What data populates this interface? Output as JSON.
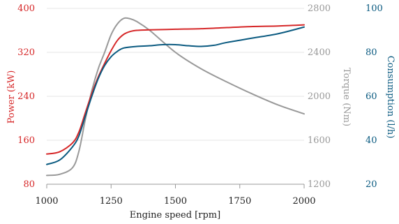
{
  "chart_data": {
    "type": "line",
    "xlabel": "Engine speed [rpm]",
    "xlim": [
      1000,
      2000
    ],
    "xticks": [
      "1000",
      "1250",
      "1500",
      "1750",
      "2000"
    ],
    "axes": {
      "power": {
        "label": "Power (kW)",
        "range": [
          80,
          400
        ],
        "ticks": [
          "80",
          "160",
          "240",
          "320",
          "400"
        ],
        "color": "#d62728"
      },
      "torque": {
        "label": "Torque (Nm)",
        "range": [
          1200,
          2800
        ],
        "ticks": [
          "1200",
          "1600",
          "2000",
          "2400",
          "2800"
        ],
        "color": "#999999"
      },
      "consumption": {
        "label": "Consumption (l/h)",
        "range": [
          20,
          100
        ],
        "ticks": [
          "20",
          "40",
          "60",
          "80",
          "100"
        ],
        "color": "#0a5a80"
      }
    },
    "grid": true,
    "series": [
      {
        "axis": "power",
        "color": "#d62728",
        "points": [
          [
            1000,
            135
          ],
          [
            1050,
            139
          ],
          [
            1100,
            155
          ],
          [
            1125,
            175
          ],
          [
            1150,
            210
          ],
          [
            1175,
            245
          ],
          [
            1200,
            275
          ],
          [
            1225,
            300
          ],
          [
            1250,
            323
          ],
          [
            1275,
            342
          ],
          [
            1300,
            353
          ],
          [
            1325,
            358
          ],
          [
            1350,
            360
          ],
          [
            1400,
            361
          ],
          [
            1500,
            362
          ],
          [
            1600,
            363
          ],
          [
            1700,
            365
          ],
          [
            1800,
            367
          ],
          [
            1900,
            368
          ],
          [
            2000,
            370
          ]
        ]
      },
      {
        "axis": "torque",
        "color": "#999999",
        "points": [
          [
            1000,
            1280
          ],
          [
            1050,
            1290
          ],
          [
            1100,
            1350
          ],
          [
            1125,
            1500
          ],
          [
            1150,
            1790
          ],
          [
            1175,
            2050
          ],
          [
            1200,
            2250
          ],
          [
            1225,
            2400
          ],
          [
            1250,
            2560
          ],
          [
            1275,
            2660
          ],
          [
            1300,
            2710
          ],
          [
            1325,
            2705
          ],
          [
            1350,
            2680
          ],
          [
            1400,
            2600
          ],
          [
            1500,
            2400
          ],
          [
            1600,
            2250
          ],
          [
            1700,
            2130
          ],
          [
            1800,
            2020
          ],
          [
            1900,
            1920
          ],
          [
            2000,
            1840
          ]
        ]
      },
      {
        "axis": "consumption",
        "color": "#0a5a80",
        "points": [
          [
            1000,
            29
          ],
          [
            1050,
            31
          ],
          [
            1100,
            37
          ],
          [
            1125,
            42
          ],
          [
            1150,
            51
          ],
          [
            1175,
            60
          ],
          [
            1200,
            68
          ],
          [
            1225,
            74
          ],
          [
            1250,
            78
          ],
          [
            1275,
            80.5
          ],
          [
            1300,
            82
          ],
          [
            1350,
            82.7
          ],
          [
            1400,
            83
          ],
          [
            1450,
            83.5
          ],
          [
            1500,
            83.5
          ],
          [
            1550,
            83
          ],
          [
            1600,
            82.7
          ],
          [
            1650,
            83.2
          ],
          [
            1700,
            84.5
          ],
          [
            1800,
            86.5
          ],
          [
            1900,
            88.5
          ],
          [
            2000,
            91.5
          ]
        ]
      }
    ]
  }
}
